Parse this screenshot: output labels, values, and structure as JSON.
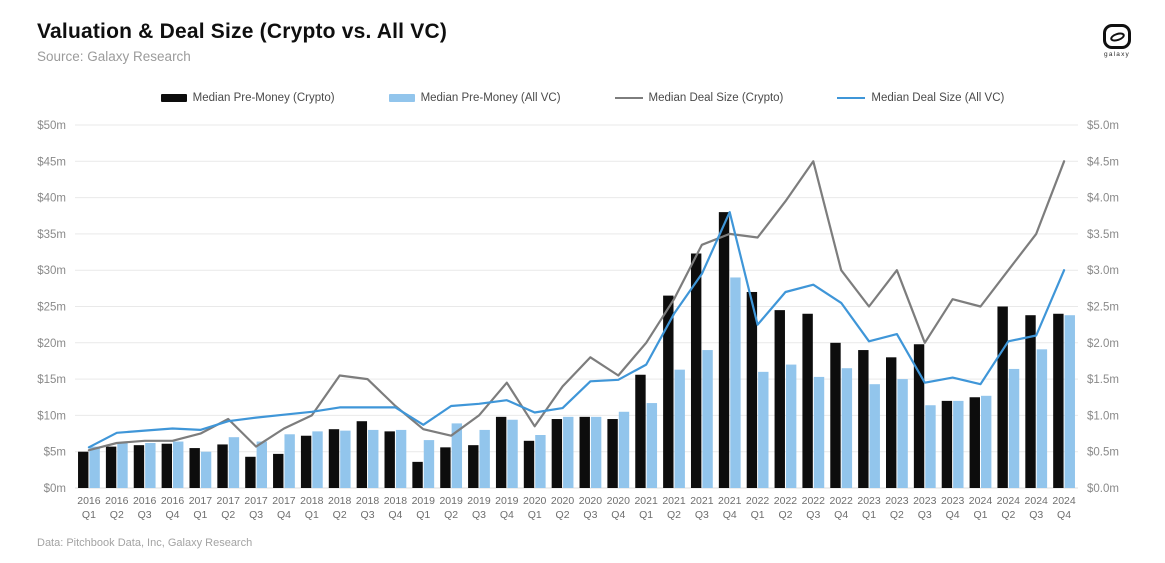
{
  "header": {
    "title": "Valuation & Deal Size (Crypto vs. All VC)",
    "source": "Source: Galaxy Research",
    "logo_text": "galaxy"
  },
  "footer": {
    "credit": "Data: Pitchbook Data, Inc, Galaxy Research"
  },
  "legend": [
    {
      "label": "Median Pre-Money (Crypto)",
      "type": "bar",
      "color": "#0d0d0d"
    },
    {
      "label": "Median Pre-Money (All VC)",
      "type": "bar",
      "color": "#92C5EC"
    },
    {
      "label": "Median Deal Size (Crypto)",
      "type": "line",
      "color": "#7d7d7d"
    },
    {
      "label": "Median Deal Size (All VC)",
      "type": "line",
      "color": "#3F96D8"
    }
  ],
  "chart_data": {
    "type": "bar",
    "subtype": "grouped-bars-with-lines",
    "title": "Valuation & Deal Size (Crypto vs. All VC)",
    "grid": true,
    "legend_position": "top",
    "categories": [
      "2016 Q1",
      "2016 Q2",
      "2016 Q3",
      "2016 Q4",
      "2017 Q1",
      "2017 Q2",
      "2017 Q3",
      "2017 Q4",
      "2018 Q1",
      "2018 Q2",
      "2018 Q3",
      "2018 Q4",
      "2019 Q1",
      "2019 Q2",
      "2019 Q3",
      "2019 Q4",
      "2020 Q1",
      "2020 Q2",
      "2020 Q3",
      "2020 Q4",
      "2021 Q1",
      "2021 Q2",
      "2021 Q3",
      "2021 Q4",
      "2022 Q1",
      "2022 Q2",
      "2022 Q3",
      "2022 Q4",
      "2023 Q1",
      "2023 Q2",
      "2023 Q3",
      "2023 Q4",
      "2024 Q1",
      "2024 Q2",
      "2024 Q3",
      "2024 Q4"
    ],
    "series": [
      {
        "name": "Median Pre-Money (Crypto)",
        "type": "bar",
        "axis": "left",
        "color": "#0d0d0d",
        "values": [
          5.0,
          5.7,
          5.9,
          6.1,
          5.5,
          6.0,
          4.3,
          4.7,
          7.2,
          8.1,
          9.2,
          7.8,
          3.6,
          5.6,
          5.9,
          9.8,
          6.5,
          9.5,
          9.8,
          9.5,
          15.6,
          26.5,
          32.3,
          38.0,
          27.0,
          24.5,
          24.0,
          20.0,
          19.0,
          18.0,
          19.8,
          12.0,
          12.5,
          25.0,
          23.8,
          24.0
        ]
      },
      {
        "name": "Median Pre-Money (All VC)",
        "type": "bar",
        "axis": "left",
        "color": "#92C5EC",
        "values": [
          5.7,
          6.2,
          6.2,
          6.4,
          5.0,
          7.0,
          6.4,
          7.4,
          7.8,
          7.9,
          8.0,
          8.0,
          6.6,
          8.9,
          8.0,
          9.4,
          7.3,
          9.8,
          9.8,
          10.5,
          11.7,
          16.3,
          19.0,
          29.0,
          16.0,
          17.0,
          15.3,
          16.5,
          14.3,
          15.0,
          11.4,
          12.0,
          12.7,
          16.4,
          19.1,
          23.8
        ]
      },
      {
        "name": "Median Deal Size (Crypto)",
        "type": "line",
        "axis": "right",
        "color": "#7d7d7d",
        "values": [
          0.52,
          0.62,
          0.65,
          0.65,
          0.75,
          0.95,
          0.57,
          0.82,
          1.0,
          1.55,
          1.5,
          1.13,
          0.81,
          0.72,
          1.0,
          1.45,
          0.85,
          1.4,
          1.8,
          1.55,
          2.0,
          2.6,
          3.35,
          3.5,
          3.45,
          3.95,
          4.5,
          3.0,
          2.5,
          3.0,
          2.0,
          2.6,
          2.5,
          3.0,
          3.5,
          4.5
        ]
      },
      {
        "name": "Median Deal Size (All VC)",
        "type": "line",
        "axis": "right",
        "color": "#3F96D8",
        "values": [
          0.56,
          0.76,
          0.79,
          0.82,
          0.8,
          0.92,
          0.97,
          1.01,
          1.05,
          1.11,
          1.11,
          1.11,
          0.87,
          1.13,
          1.16,
          1.21,
          1.04,
          1.1,
          1.47,
          1.49,
          1.7,
          2.4,
          2.95,
          3.8,
          2.25,
          2.7,
          2.8,
          2.55,
          2.02,
          2.12,
          1.45,
          1.52,
          1.43,
          2.02,
          2.1,
          3.0
        ]
      }
    ],
    "left_axis": {
      "min": 0,
      "max": 50,
      "step": 5,
      "ticks": [
        "$0m",
        "$5m",
        "$10m",
        "$15m",
        "$20m",
        "$25m",
        "$30m",
        "$35m",
        "$40m",
        "$45m",
        "$50m"
      ]
    },
    "right_axis": {
      "min": 0,
      "max": 5,
      "step": 0.5,
      "ticks": [
        "$0.0m",
        "$0.5m",
        "$1.0m",
        "$1.5m",
        "$2.0m",
        "$2.5m",
        "$3.0m",
        "$3.5m",
        "$4.0m",
        "$4.5m",
        "$5.0m"
      ]
    }
  }
}
